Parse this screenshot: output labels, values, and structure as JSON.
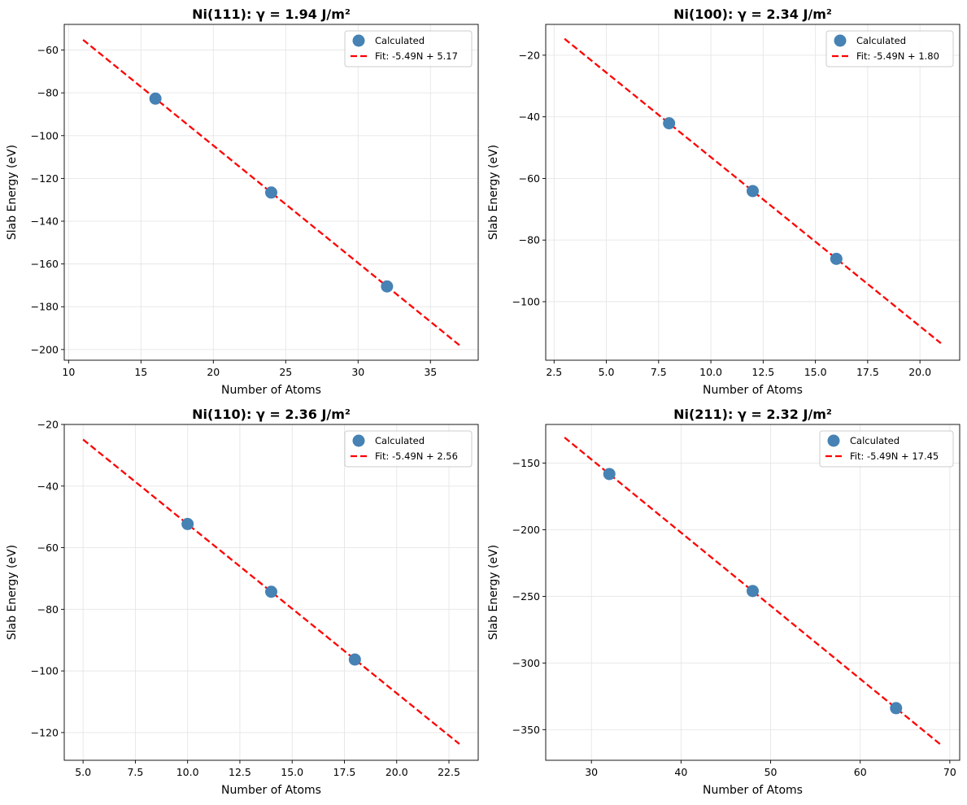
{
  "figure": {
    "layout": "2x2 grid"
  },
  "chart_data": [
    {
      "type": "scatter",
      "title": "Ni(111): γ = 1.94 J/m²",
      "xlabel": "Number of Atoms",
      "ylabel": "Slab Energy (eV)",
      "xlim": [
        9.7,
        38.3
      ],
      "ylim": [
        -205,
        -48
      ],
      "xticks": [
        10,
        15,
        20,
        25,
        30,
        35
      ],
      "xtick_labels": [
        "10",
        "15",
        "20",
        "25",
        "30",
        "35"
      ],
      "yticks": [
        -200,
        -180,
        -160,
        -140,
        -120,
        -100,
        -80,
        -60
      ],
      "ytick_labels": [
        "−200",
        "−180",
        "−160",
        "−140",
        "−120",
        "−100",
        "−80",
        "−60"
      ],
      "grid": true,
      "legend_position": "upper right",
      "series": [
        {
          "name": "Calculated",
          "kind": "scatter",
          "color": "#4682b4",
          "x": [
            16,
            24,
            32
          ],
          "y": [
            -82.7,
            -126.6,
            -170.5
          ]
        }
      ],
      "fit": {
        "name": "Fit: -5.49N + 5.17",
        "kind": "line",
        "color": "#ff0000",
        "style": "dashed",
        "slope": -5.49,
        "intercept": 5.17,
        "x_range": [
          11,
          37
        ]
      }
    },
    {
      "type": "scatter",
      "title": "Ni(100): γ = 2.34 J/m²",
      "xlabel": "Number of Atoms",
      "ylabel": "Slab Energy (eV)",
      "xlim": [
        2.1,
        21.9
      ],
      "ylim": [
        -119,
        -10
      ],
      "xticks": [
        2.5,
        5.0,
        7.5,
        10.0,
        12.5,
        15.0,
        17.5,
        20.0
      ],
      "xtick_labels": [
        "2.5",
        "5.0",
        "7.5",
        "10.0",
        "12.5",
        "15.0",
        "17.5",
        "20.0"
      ],
      "yticks": [
        -100,
        -80,
        -60,
        -40,
        -20
      ],
      "ytick_labels": [
        "−100",
        "−80",
        "−60",
        "−40",
        "−20"
      ],
      "grid": true,
      "legend_position": "upper right",
      "series": [
        {
          "name": "Calculated",
          "kind": "scatter",
          "color": "#4682b4",
          "x": [
            8,
            12,
            16
          ],
          "y": [
            -42.1,
            -64.1,
            -86.1
          ]
        }
      ],
      "fit": {
        "name": "Fit: -5.49N + 1.80",
        "kind": "line",
        "color": "#ff0000",
        "style": "dashed",
        "slope": -5.49,
        "intercept": 1.8,
        "x_range": [
          3,
          21
        ]
      }
    },
    {
      "type": "scatter",
      "title": "Ni(110): γ = 2.36 J/m²",
      "xlabel": "Number of Atoms",
      "ylabel": "Slab Energy (eV)",
      "xlim": [
        4.1,
        23.9
      ],
      "ylim": [
        -129,
        -20
      ],
      "xticks": [
        5.0,
        7.5,
        10.0,
        12.5,
        15.0,
        17.5,
        20.0,
        22.5
      ],
      "xtick_labels": [
        "5.0",
        "7.5",
        "10.0",
        "12.5",
        "15.0",
        "17.5",
        "20.0",
        "22.5"
      ],
      "yticks": [
        -120,
        -100,
        -80,
        -60,
        -40,
        -20
      ],
      "ytick_labels": [
        "−120",
        "−100",
        "−80",
        "−60",
        "−40",
        "−20"
      ],
      "grid": true,
      "legend_position": "upper right",
      "series": [
        {
          "name": "Calculated",
          "kind": "scatter",
          "color": "#4682b4",
          "x": [
            10,
            14,
            18
          ],
          "y": [
            -52.3,
            -74.3,
            -96.3
          ]
        }
      ],
      "fit": {
        "name": "Fit: -5.49N + 2.56",
        "kind": "line",
        "color": "#ff0000",
        "style": "dashed",
        "slope": -5.49,
        "intercept": 2.56,
        "x_range": [
          5,
          23
        ]
      }
    },
    {
      "type": "scatter",
      "title": "Ni(211): γ = 2.32 J/m²",
      "xlabel": "Number of Atoms",
      "ylabel": "Slab Energy (eV)",
      "xlim": [
        24.9,
        71.1
      ],
      "ylim": [
        -373,
        -121
      ],
      "xticks": [
        30,
        40,
        50,
        60,
        70
      ],
      "xtick_labels": [
        "30",
        "40",
        "50",
        "60",
        "70"
      ],
      "yticks": [
        -350,
        -300,
        -250,
        -200,
        -150
      ],
      "ytick_labels": [
        "−350",
        "−300",
        "−250",
        "−200",
        "−150"
      ],
      "grid": true,
      "legend_position": "upper right",
      "series": [
        {
          "name": "Calculated",
          "kind": "scatter",
          "color": "#4682b4",
          "x": [
            32,
            48,
            64
          ],
          "y": [
            -158.2,
            -246.0,
            -333.9
          ]
        }
      ],
      "fit": {
        "name": "Fit: -5.49N + 17.45",
        "kind": "line",
        "color": "#ff0000",
        "style": "dashed",
        "slope": -5.49,
        "intercept": 17.45,
        "x_range": [
          27,
          69
        ]
      }
    }
  ]
}
